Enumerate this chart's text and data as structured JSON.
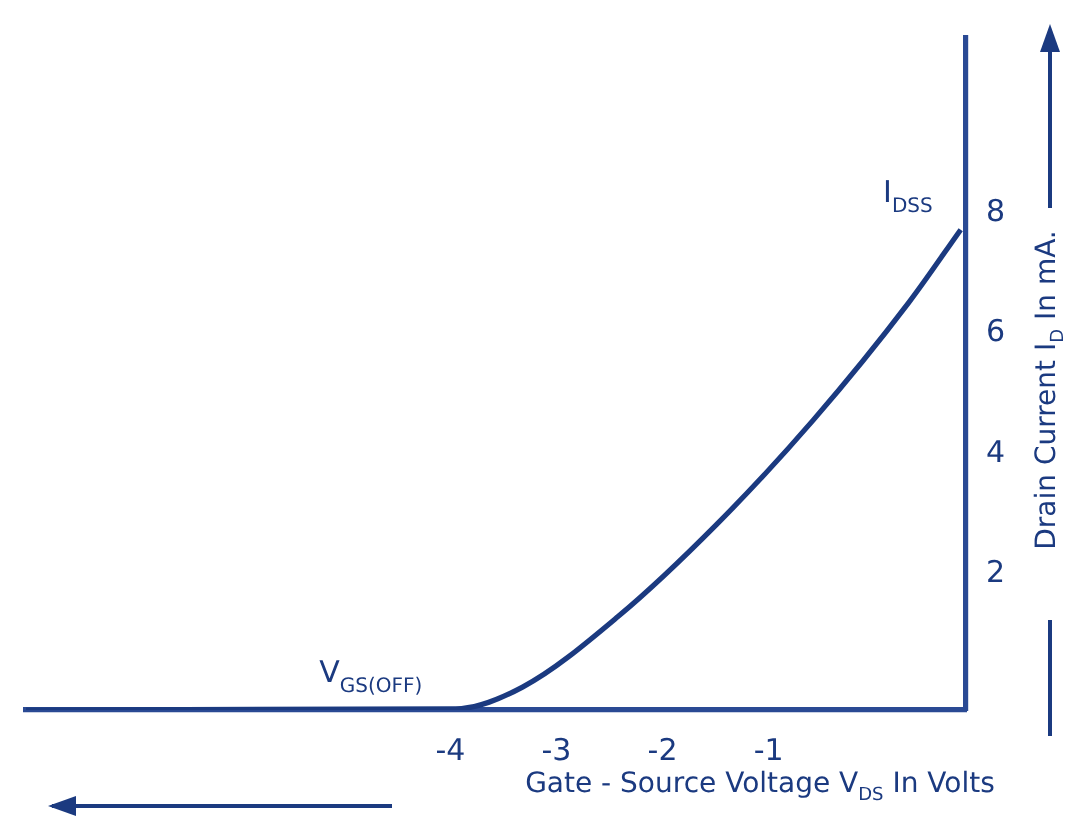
{
  "chart_data": {
    "type": "line",
    "xlabel": "Gate - Source Voltage V$_{DS}$ In Volts",
    "ylabel": "Drain Current  I$_{D}$ In mA.",
    "x": [
      -8,
      -3.95,
      -3.32,
      -2.42,
      -1.49,
      -0.58,
      0.32,
      0.81
    ],
    "series": [
      {
        "color": "#1b3a80",
        "values": [
          -0.25,
          -0.23,
          0.13,
          1.3,
          2.83,
          4.56,
          6.51,
          7.72
        ]
      }
    ],
    "xlim": [
      -8,
      0.86
    ],
    "ylim": [
      -0.25,
      10.9
    ],
    "xticks": [
      -4,
      -3,
      -2,
      -1
    ],
    "yticks": [
      2,
      4,
      6,
      8
    ],
    "annotations": [
      {
        "text": "V$_{GS(OFF)}$",
        "x": -4,
        "y": -0.25
      },
      {
        "text": "I$_{DSS}$",
        "x": 0.81,
        "y": 7.72
      }
    ],
    "grid": false,
    "legend": false,
    "marker": "none",
    "line_style": "solid"
  }
}
